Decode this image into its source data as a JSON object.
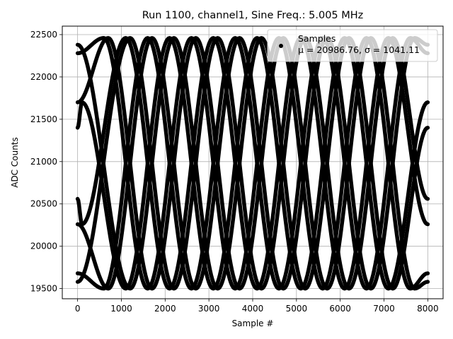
{
  "chart_data": {
    "type": "scatter",
    "title": "Run 1100, channel1, Sine Freq.: 5.005 MHz",
    "xlabel": "Sample #",
    "ylabel": "ADC Counts",
    "xlim": [
      -350,
      8350
    ],
    "ylim": [
      19380,
      22600
    ],
    "xticks": [
      0,
      1000,
      2000,
      3000,
      4000,
      5000,
      6000,
      7000,
      8000
    ],
    "yticks": [
      19500,
      20000,
      20500,
      21000,
      21500,
      22000,
      22500
    ],
    "grid": true,
    "legend": {
      "placement": "top-right",
      "title": "Samples",
      "entry": "μ = 20986.76, σ = 1041.11"
    },
    "series": [
      {
        "marker": "dot",
        "color": "#000000",
        "curves": [
          {
            "x": [
              0,
              600,
              1600,
              2600,
              3600,
              4600,
              5600,
              6600,
              7600,
              8000
            ],
            "y": [
              22280,
              22460,
              19500,
              22460,
              19500,
              22460,
              19500,
              22460,
              19500,
              19680
            ]
          },
          {
            "x": [
              0,
              600,
              1600,
              2600,
              3600,
              4600,
              5600,
              6600,
              7600,
              8000
            ],
            "y": [
              19680,
              19500,
              22460,
              19500,
              22460,
              19500,
              22460,
              19500,
              22460,
              22280
            ]
          },
          {
            "x": [
              0,
              100,
              1100,
              2100,
              3100,
              4100,
              5100,
              6100,
              7100,
              8000
            ],
            "y": [
              21400,
              21700,
              19500,
              22460,
              19500,
              22460,
              19500,
              22460,
              19500,
              21700
            ]
          },
          {
            "x": [
              0,
              100,
              1100,
              2100,
              3100,
              4100,
              5100,
              6100,
              7100,
              8000
            ],
            "y": [
              20560,
              20260,
              22460,
              19500,
              22460,
              19500,
              22460,
              19500,
              22460,
              20260
            ]
          },
          {
            "x": [
              0,
              1200,
              2200,
              3200,
              4200,
              5200,
              6200,
              7200,
              8000
            ],
            "y": [
              22380,
              19500,
              22460,
              19500,
              22460,
              19500,
              22460,
              19500,
              21400
            ]
          },
          {
            "x": [
              0,
              1200,
              2200,
              3200,
              4200,
              5200,
              6200,
              7200,
              8000
            ],
            "y": [
              19580,
              22460,
              19500,
              22460,
              19500,
              22460,
              19500,
              22460,
              20560
            ]
          },
          {
            "x": [
              0,
              700,
              1700,
              2700,
              3700,
              4700,
              5700,
              6700,
              7700,
              8000
            ],
            "y": [
              21700,
              22460,
              19500,
              22460,
              19500,
              22460,
              19500,
              22460,
              19500,
              19580
            ]
          },
          {
            "x": [
              0,
              700,
              1700,
              2700,
              3700,
              4700,
              5700,
              6700,
              7700,
              8000
            ],
            "y": [
              20260,
              19500,
              22460,
              19500,
              22460,
              19500,
              22460,
              19500,
              22460,
              22380
            ]
          }
        ]
      }
    ]
  }
}
